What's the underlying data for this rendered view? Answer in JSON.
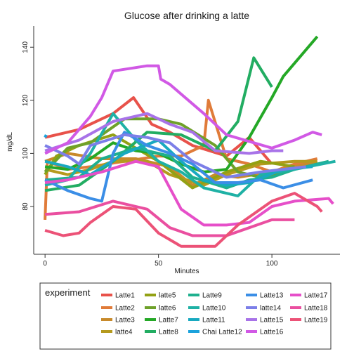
{
  "chart_data": {
    "type": "line",
    "title": "Glucose after drinking a latte",
    "xlabel": "Minutes",
    "ylabel": "mg/dL",
    "xlim": [
      -5,
      130
    ],
    "ylim": [
      62,
      148
    ],
    "xticks": [
      0,
      50,
      100
    ],
    "yticks": [
      80,
      100,
      120,
      140
    ],
    "grid": false,
    "legend": {
      "title": "experiment",
      "placement": "bottom"
    },
    "series": [
      {
        "name": "Latte1",
        "color": "#e8524a",
        "points": [
          [
            0,
            106
          ],
          [
            15,
            109
          ],
          [
            30,
            115
          ],
          [
            39,
            121
          ],
          [
            47,
            111
          ],
          [
            55,
            108
          ],
          [
            65,
            103
          ],
          [
            80,
            99
          ],
          [
            90,
            106
          ],
          [
            100,
            96
          ]
        ]
      },
      {
        "name": "Latte2",
        "color": "#e07b39",
        "points": [
          [
            0,
            75
          ],
          [
            1,
            97
          ],
          [
            10,
            94
          ],
          [
            20,
            95
          ],
          [
            35,
            97
          ],
          [
            50,
            99
          ],
          [
            60,
            99
          ],
          [
            70,
            103
          ],
          [
            72,
            120
          ],
          [
            80,
            98
          ],
          [
            90,
            96
          ],
          [
            100,
            93
          ],
          [
            110,
            96
          ],
          [
            120,
            98
          ]
        ]
      },
      {
        "name": "Latte3",
        "color": "#c88a2b",
        "points": [
          [
            0,
            97
          ],
          [
            10,
            100
          ],
          [
            25,
            98
          ],
          [
            40,
            98
          ],
          [
            55,
            95
          ],
          [
            65,
            88
          ],
          [
            75,
            92
          ],
          [
            85,
            91
          ],
          [
            100,
            93
          ],
          [
            120,
            97
          ]
        ]
      },
      {
        "name": "latte4",
        "color": "#b59a1e",
        "points": [
          [
            0,
            94
          ],
          [
            10,
            92
          ],
          [
            20,
            94
          ],
          [
            30,
            97
          ],
          [
            45,
            97
          ],
          [
            55,
            92
          ],
          [
            70,
            88
          ],
          [
            80,
            92
          ],
          [
            95,
            96
          ],
          [
            110,
            97
          ],
          [
            120,
            97
          ]
        ]
      },
      {
        "name": "latte5",
        "color": "#93a114",
        "points": [
          [
            0,
            92
          ],
          [
            5,
            99
          ],
          [
            15,
            103
          ],
          [
            30,
            107
          ],
          [
            40,
            102
          ],
          [
            50,
            97
          ],
          [
            65,
            87
          ],
          [
            80,
            93
          ],
          [
            95,
            97
          ],
          [
            110,
            95
          ]
        ]
      },
      {
        "name": "latte6",
        "color": "#6ea12a",
        "points": [
          [
            0,
            93
          ],
          [
            10,
            102
          ],
          [
            20,
            104
          ],
          [
            35,
            113
          ],
          [
            50,
            113
          ],
          [
            60,
            111
          ],
          [
            75,
            103
          ],
          [
            85,
            93
          ],
          [
            95,
            91
          ],
          [
            100,
            92
          ],
          [
            110,
            95
          ]
        ]
      },
      {
        "name": "Latte7",
        "color": "#24a826",
        "points": [
          [
            0,
            95
          ],
          [
            10,
            94
          ],
          [
            20,
            98
          ],
          [
            30,
            104
          ],
          [
            40,
            101
          ],
          [
            50,
            100
          ],
          [
            60,
            96
          ],
          [
            70,
            93
          ],
          [
            80,
            94
          ],
          [
            90,
            106
          ],
          [
            100,
            121
          ],
          [
            105,
            129
          ],
          [
            120,
            144
          ]
        ]
      },
      {
        "name": "Latte8",
        "color": "#22ad62",
        "points": [
          [
            0,
            86
          ],
          [
            15,
            88
          ],
          [
            30,
            97
          ],
          [
            45,
            108
          ],
          [
            60,
            107
          ],
          [
            75,
            101
          ],
          [
            85,
            112
          ],
          [
            92,
            136
          ],
          [
            100,
            125
          ]
        ]
      },
      {
        "name": "Latte9",
        "color": "#1fb08e",
        "points": [
          [
            0,
            90
          ],
          [
            15,
            91
          ],
          [
            25,
            98
          ],
          [
            40,
            102
          ],
          [
            55,
            99
          ],
          [
            65,
            91
          ],
          [
            80,
            87
          ],
          [
            90,
            90
          ],
          [
            100,
            91
          ],
          [
            110,
            94
          ],
          [
            125,
            97
          ]
        ]
      },
      {
        "name": "Latte10",
        "color": "#1fb1a5",
        "points": [
          [
            0,
            88
          ],
          [
            10,
            90
          ],
          [
            20,
            100
          ],
          [
            30,
            115
          ],
          [
            40,
            105
          ],
          [
            50,
            97
          ],
          [
            60,
            93
          ],
          [
            70,
            87
          ],
          [
            85,
            84
          ],
          [
            95,
            92
          ],
          [
            110,
            94
          ],
          [
            128,
            97
          ]
        ]
      },
      {
        "name": "Latte11",
        "color": "#18a9c0",
        "points": [
          [
            0,
            97
          ],
          [
            10,
            95
          ],
          [
            20,
            92
          ],
          [
            35,
            100
          ],
          [
            50,
            105
          ],
          [
            60,
            97
          ],
          [
            70,
            90
          ],
          [
            80,
            88
          ],
          [
            90,
            89
          ],
          [
            105,
            94
          ],
          [
            118,
            95
          ]
        ]
      },
      {
        "name": "Chai Latte12",
        "color": "#1ba2dc",
        "points": [
          [
            0,
            106
          ],
          [
            0.5,
            107
          ]
        ]
      },
      {
        "name": "Latte13",
        "color": "#3b8ee6",
        "points": [
          [
            0,
            90
          ],
          [
            10,
            86
          ],
          [
            20,
            83
          ],
          [
            25,
            82
          ],
          [
            30,
            100
          ],
          [
            35,
            108
          ],
          [
            45,
            103
          ],
          [
            55,
            100
          ],
          [
            65,
            96
          ],
          [
            75,
            89
          ],
          [
            85,
            89
          ],
          [
            95,
            90
          ],
          [
            105,
            87
          ],
          [
            118,
            90
          ]
        ]
      },
      {
        "name": "latte14",
        "color": "#7c7fe8",
        "points": [
          [
            0,
            103
          ],
          [
            10,
            99
          ],
          [
            15,
            96
          ],
          [
            20,
            103
          ],
          [
            35,
            107
          ],
          [
            45,
            106
          ],
          [
            55,
            104
          ],
          [
            65,
            97
          ],
          [
            80,
            91
          ],
          [
            95,
            93
          ],
          [
            105,
            94
          ],
          [
            115,
            95
          ]
        ]
      },
      {
        "name": "Latte15",
        "color": "#a873e8",
        "points": [
          [
            0,
            101
          ],
          [
            15,
            105
          ],
          [
            30,
            112
          ],
          [
            45,
            115
          ],
          [
            55,
            111
          ],
          [
            65,
            108
          ],
          [
            75,
            101
          ],
          [
            90,
            100
          ],
          [
            100,
            101
          ],
          [
            105,
            101
          ]
        ]
      },
      {
        "name": "Latte16",
        "color": "#d159e5",
        "points": [
          [
            0,
            100
          ],
          [
            10,
            104
          ],
          [
            20,
            114
          ],
          [
            25,
            121
          ],
          [
            30,
            131
          ],
          [
            45,
            133
          ],
          [
            50,
            133
          ],
          [
            51,
            128
          ],
          [
            55,
            126
          ],
          [
            70,
            115
          ],
          [
            80,
            107
          ],
          [
            100,
            102
          ],
          [
            110,
            105
          ],
          [
            118,
            108
          ],
          [
            122,
            107
          ]
        ]
      },
      {
        "name": "Latte17",
        "color": "#e64fc9",
        "points": [
          [
            0,
            89
          ],
          [
            10,
            90
          ],
          [
            25,
            93
          ],
          [
            40,
            97
          ],
          [
            50,
            95
          ],
          [
            60,
            79
          ],
          [
            70,
            73
          ],
          [
            80,
            73
          ],
          [
            90,
            74
          ],
          [
            100,
            80
          ],
          [
            110,
            82
          ],
          [
            125,
            83
          ],
          [
            127,
            81
          ]
        ]
      },
      {
        "name": "Latte18",
        "color": "#ea4fa0",
        "points": [
          [
            0,
            77
          ],
          [
            15,
            78
          ],
          [
            30,
            82
          ],
          [
            45,
            79
          ],
          [
            55,
            72
          ],
          [
            65,
            69
          ],
          [
            80,
            69
          ],
          [
            90,
            72
          ],
          [
            100,
            75
          ],
          [
            110,
            75
          ]
        ]
      },
      {
        "name": "Latte19",
        "color": "#ec5277",
        "points": [
          [
            0,
            71
          ],
          [
            8,
            69
          ],
          [
            15,
            70
          ],
          [
            20,
            74
          ],
          [
            30,
            80
          ],
          [
            40,
            79
          ],
          [
            50,
            70
          ],
          [
            60,
            65
          ],
          [
            75,
            65
          ],
          [
            85,
            73
          ],
          [
            100,
            82
          ],
          [
            110,
            85
          ],
          [
            120,
            80
          ],
          [
            122,
            78
          ]
        ]
      }
    ]
  }
}
